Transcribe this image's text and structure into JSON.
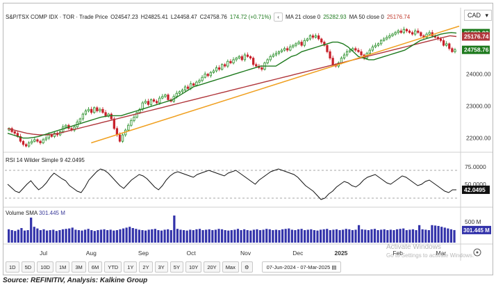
{
  "header": {
    "title": "S&P/TSX COMP IDX · TOR · Trade Price",
    "open": "O24547.23",
    "high": "H24825.41",
    "low": "L24458.47",
    "close": "C24758.76",
    "change": "174.72 (+0.71%)",
    "ma21": "MA 21 close 0",
    "ma21_value": "25282.93",
    "ma50": "MA 50 close 0",
    "ma50_value": "25176.74"
  },
  "currency": "CAD",
  "rsi": {
    "label": "RSI 14 Wilder Simple 9",
    "value": "42.0495"
  },
  "volume": {
    "label": "Volume SMA",
    "value": "301.445 M"
  },
  "range_buttons": [
    "1D",
    "5D",
    "10D",
    "1M",
    "3M",
    "6M",
    "YTD",
    "1Y",
    "2Y",
    "3Y",
    "5Y",
    "10Y",
    "20Y",
    "Max"
  ],
  "date_range": "07-Jun-2024 - 07-Mar-2025",
  "watermark": {
    "line1": "Activate Windows",
    "line2": "Go to Settings to activate Windows."
  },
  "source": "Source: REFINITIV, Analysis: Kalkine Group",
  "colors": {
    "up": "#1f8a1f",
    "down": "#c8202a",
    "ma21": "#1e7a1e",
    "ma50": "#b0353a",
    "trend": "#f0a020",
    "volume": "#3333aa"
  },
  "chart_data": {
    "type": "candlestick",
    "x_labels": [
      "Jul",
      "Aug",
      "Sep",
      "Oct",
      "Nov",
      "Dec",
      "2025",
      "Feb",
      "Mar"
    ],
    "price_axis": {
      "ticks": [
        22000,
        23000,
        24000
      ],
      "tick_labels": [
        "22000.00",
        "23000.00",
        "24000.00"
      ],
      "range": [
        21600,
        25600
      ]
    },
    "price_tags": [
      {
        "label": "25282.93",
        "value": 25282.93,
        "color": "#1e7a1e"
      },
      {
        "label": "25176.74",
        "value": 25176.74,
        "color": "#b0353a"
      },
      {
        "label": "24758.76",
        "value": 24758.76,
        "color": "#1e7a1e"
      }
    ],
    "rsi_axis": {
      "ticks": [
        75,
        50
      ],
      "tick_labels": [
        "75.0000",
        "50.0000"
      ],
      "range": [
        20,
        90
      ],
      "bands": [
        70,
        30
      ]
    },
    "rsi_tag": {
      "label": "42.0495",
      "value": 42.0495
    },
    "volume_axis": {
      "ticks": [
        500
      ],
      "tick_labels": [
        "500 M"
      ],
      "range": [
        0,
        800
      ]
    },
    "volume_tag": {
      "label": "301.445 M",
      "value": 301.445
    },
    "closes": [
      22300,
      22200,
      22150,
      22050,
      21900,
      21800,
      21750,
      21850,
      21900,
      21950,
      21900,
      21850,
      21950,
      22000,
      22100,
      22050,
      22150,
      22100,
      22200,
      22350,
      22400,
      22300,
      22250,
      22350,
      22500,
      22600,
      22750,
      22850,
      22900,
      22800,
      22950,
      22850,
      22900,
      22800,
      22700,
      22750,
      22600,
      22300,
      22100,
      21900,
      22100,
      22250,
      22400,
      22550,
      22650,
      22800,
      22900,
      23100,
      23150,
      23050,
      23200,
      23150,
      23100,
      23250,
      23300,
      23350,
      23200,
      23150,
      23300,
      23400,
      23450,
      23500,
      23600,
      23550,
      23700,
      23650,
      23750,
      23800,
      23900,
      24000,
      23950,
      24050,
      24100,
      24200,
      24150,
      24300,
      24250,
      24400,
      24350,
      24450,
      24500,
      24550,
      24450,
      24600,
      24550,
      24500,
      24300,
      24250,
      24200,
      24150,
      24350,
      24450,
      24550,
      24600,
      24650,
      24700,
      24750,
      24800,
      24750,
      24850,
      24900,
      24950,
      25000,
      24900,
      25050,
      25100,
      25200,
      25150,
      25200,
      25100,
      25000,
      24900,
      24700,
      24500,
      24300,
      24250,
      24350,
      24500,
      24600,
      24700,
      24750,
      24800,
      24750,
      24700,
      24600,
      24500,
      24650,
      24750,
      24850,
      24900,
      24950,
      25050,
      25100,
      25150,
      25200,
      25250,
      25300,
      25350,
      25300,
      25400,
      25350,
      25300,
      25250,
      25350,
      25300,
      25200,
      25150,
      25250,
      25300,
      25200,
      25150,
      25100,
      25050,
      24900,
      24950,
      24800,
      24700,
      24758.76
    ],
    "ma21": [
      22150,
      22100,
      22050,
      22000,
      22000,
      22020,
      22050,
      22100,
      22150,
      22200,
      22250,
      22300,
      22350,
      22400,
      22450,
      22500,
      22550,
      22600,
      22650,
      22680,
      22700,
      22700,
      22700,
      22750,
      22800,
      22850,
      22900,
      22950,
      23000,
      23050,
      23100,
      23150,
      23200,
      23300,
      23400,
      23500,
      23600,
      23650,
      23700,
      23750,
      23800,
      23850,
      23900,
      23950,
      24000,
      24050,
      24100,
      24150,
      24200,
      24250,
      24250,
      24250,
      24250,
      24350,
      24450,
      24550,
      24600,
      24700,
      24750,
      24800,
      24850,
      24900,
      24950,
      25000,
      25000,
      24950,
      24850,
      24700,
      24550,
      24500,
      24450,
      24450,
      24500,
      24550,
      24600,
      24650,
      24700,
      24750,
      24850,
      24950,
      25050,
      25100,
      25150,
      25200,
      25250,
      25280,
      25300,
      25282.93
    ],
    "ma50": [
      22300,
      22250,
      22200,
      22150,
      22120,
      22100,
      22100,
      22120,
      22150,
      22200,
      22250,
      22300,
      22350,
      22400,
      22450,
      22500,
      22550,
      22600,
      22650,
      22700,
      22750,
      22800,
      22850,
      22900,
      22950,
      23000,
      23050,
      23100,
      23150,
      23200,
      23250,
      23300,
      23350,
      23400,
      23450,
      23500,
      23550,
      23600,
      23650,
      23700,
      23750,
      23800,
      23850,
      23900,
      23950,
      24000,
      24050,
      24100,
      24150,
      24200,
      24250,
      24300,
      24350,
      24400,
      24450,
      24500,
      24550,
      24600,
      24650,
      24700,
      24750,
      24800,
      24850,
      24900,
      24950,
      25000,
      25050,
      25100,
      25150,
      25200,
      25176.74
    ],
    "trendline": [
      [
        0.19,
        21850
      ],
      [
        1.0,
        25500
      ]
    ],
    "rsi_values": [
      50,
      45,
      40,
      38,
      44,
      50,
      55,
      48,
      42,
      46,
      52,
      60,
      66,
      62,
      58,
      55,
      48,
      44,
      40,
      38,
      46,
      56,
      62,
      68,
      72,
      70,
      66,
      60,
      54,
      48,
      44,
      50,
      56,
      60,
      64,
      62,
      58,
      52,
      46,
      42,
      48,
      56,
      62,
      66,
      68,
      66,
      64,
      62,
      60,
      64,
      66,
      68,
      70,
      68,
      66,
      64,
      62,
      66,
      68,
      70,
      66,
      62,
      58,
      54,
      50,
      56,
      60,
      64,
      68,
      70,
      72,
      70,
      68,
      66,
      64,
      60,
      54,
      48,
      44,
      40,
      34,
      28,
      30,
      36,
      40,
      46,
      50,
      54,
      52,
      48,
      46,
      50,
      56,
      60,
      62,
      64,
      60,
      56,
      52,
      50,
      54,
      58,
      62,
      60,
      56,
      52,
      48,
      50,
      54,
      56,
      52,
      48,
      44,
      40,
      38,
      42,
      42.0495
    ],
    "volume_values": [
      320,
      300,
      280,
      310,
      350,
      290,
      300,
      600,
      380,
      340,
      300,
      320,
      290,
      300,
      310,
      280,
      300,
      320,
      330,
      340,
      360,
      310,
      300,
      290,
      310,
      330,
      300,
      280,
      300,
      310,
      320,
      300,
      310,
      290,
      300,
      320,
      340,
      360,
      380,
      350,
      330,
      310,
      300,
      290,
      310,
      320,
      330,
      300,
      290,
      310,
      320,
      300,
      650,
      330,
      310,
      300,
      290,
      310,
      300,
      320,
      330,
      300,
      310,
      320,
      300,
      310,
      330,
      320,
      300,
      290,
      300,
      310,
      330,
      300,
      320,
      300,
      290,
      310,
      320,
      300,
      310,
      330,
      320,
      300,
      310,
      300,
      320,
      330,
      340,
      310,
      300,
      320,
      330,
      300,
      310,
      320,
      300,
      290,
      310,
      320,
      330,
      300,
      310,
      320,
      300,
      310,
      330,
      320,
      300,
      310,
      420,
      320,
      310,
      300,
      320,
      330,
      300,
      310,
      320,
      300,
      310,
      300,
      320,
      330,
      340,
      300,
      310,
      320,
      300,
      420,
      320,
      310,
      300,
      420,
      410,
      400,
      380,
      360,
      340,
      320,
      301.445
    ]
  }
}
